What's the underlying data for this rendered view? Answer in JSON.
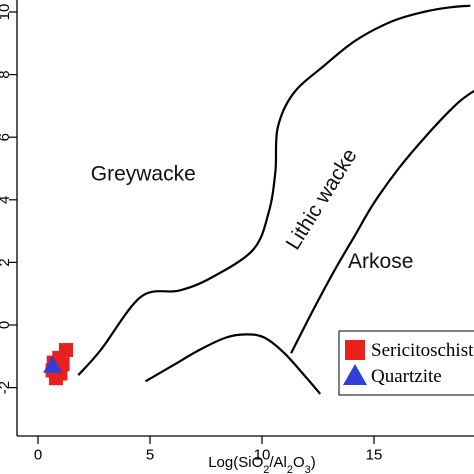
{
  "chart_data": {
    "type": "scatter",
    "xlabel": "Log(SiO2/Al2O3)",
    "xlabel_parts": [
      "Log(SiO",
      "2",
      "/Al",
      "2",
      "O",
      "3",
      ")"
    ],
    "ylabel": "",
    "xlim": [
      -1,
      20
    ],
    "ylim": [
      -2.2,
      10.4
    ],
    "x_ticks": [
      0,
      5,
      10,
      15
    ],
    "x_tick_labels": [
      "0",
      "5",
      "10",
      "15"
    ],
    "y_ticks": [
      -2,
      0,
      2,
      4,
      6,
      8,
      10
    ],
    "y_tick_labels": [
      "-2",
      "0",
      "2",
      "4",
      "6",
      "8",
      "10"
    ],
    "grid": false,
    "legend_position": "bottom-right",
    "fields": [
      {
        "name": "Greywacke",
        "x": 4.7,
        "y": 4.8,
        "rotation": 0
      },
      {
        "name": "Lithic wacke",
        "x": 12.7,
        "y": 4.0,
        "rotation": -58
      },
      {
        "name": "Arkose",
        "x": 15.3,
        "y": 2.0,
        "rotation": 0
      }
    ],
    "boundaries": [
      {
        "name": "greywacke-lithic-boundary",
        "x": [
          1.8,
          2.8,
          4.6,
          6.3,
          7.7,
          9.6,
          10.3,
          10.6,
          10.7,
          11.4,
          12.8,
          14.2,
          15.8,
          17.2,
          18.4,
          19.3
        ],
        "y": [
          -1.6,
          -0.8,
          0.9,
          1.1,
          1.5,
          2.4,
          3.6,
          4.9,
          6.3,
          7.4,
          8.3,
          9.1,
          9.7,
          10.0,
          10.15,
          10.2
        ]
      },
      {
        "name": "lithic-arkose-boundary",
        "x": [
          11.3,
          12.3,
          13.2,
          14.1,
          15.0,
          16.1,
          17.4,
          18.6,
          19.3,
          19.8
        ],
        "y": [
          -0.9,
          0.5,
          1.7,
          2.8,
          3.9,
          5.0,
          6.1,
          7.0,
          7.4,
          7.6
        ]
      },
      {
        "name": "lower-boundary",
        "x": [
          4.8,
          6.0,
          7.2,
          8.4,
          9.3,
          10.1,
          11.0,
          12.0,
          12.6
        ],
        "y": [
          -1.8,
          -1.3,
          -0.8,
          -0.4,
          -0.3,
          -0.4,
          -0.9,
          -1.7,
          -2.2
        ]
      }
    ],
    "series": [
      {
        "name": "Sericitoschist",
        "marker": "square",
        "color": "#e8211f",
        "x": [
          0.85,
          1.25,
          0.7,
          1.0,
          0.8,
          0.65,
          0.95,
          1.1
        ],
        "y": [
          -1.35,
          -0.8,
          -1.2,
          -1.55,
          -1.7,
          -1.45,
          -1.05,
          -1.25
        ]
      },
      {
        "name": "Quartzite",
        "marker": "triangle",
        "color": "#2f3fd8",
        "x": [
          0.65
        ],
        "y": [
          -1.3
        ]
      }
    ]
  }
}
